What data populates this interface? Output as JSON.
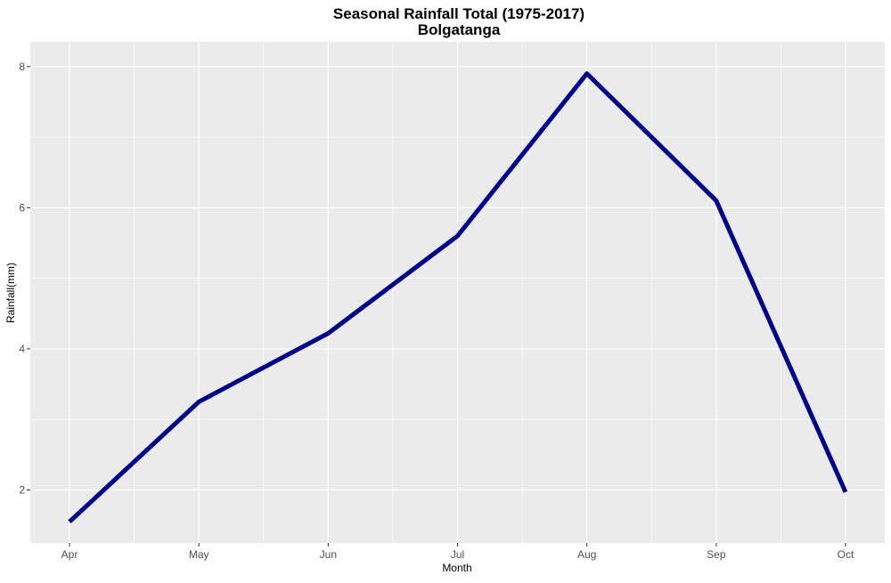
{
  "chart_data": {
    "type": "line",
    "title": "Seasonal Rainfall Total (1975-2017)",
    "subtitle": "Bolgatanga",
    "xlabel": "Month",
    "ylabel": "Rainfall(mm)",
    "categories": [
      "Apr",
      "May",
      "Jun",
      "Jul",
      "Aug",
      "Sep",
      "Oct"
    ],
    "series": [
      {
        "values": [
          1.55,
          3.25,
          4.22,
          5.6,
          7.9,
          6.1,
          1.97
        ]
      }
    ],
    "ylim": [
      1.25,
      8.35
    ],
    "yticks": [
      2,
      4,
      6,
      8
    ],
    "grid": true,
    "line_color": "#00008b",
    "panel_background": "#ebebeb",
    "grid_color": "#ffffff"
  }
}
